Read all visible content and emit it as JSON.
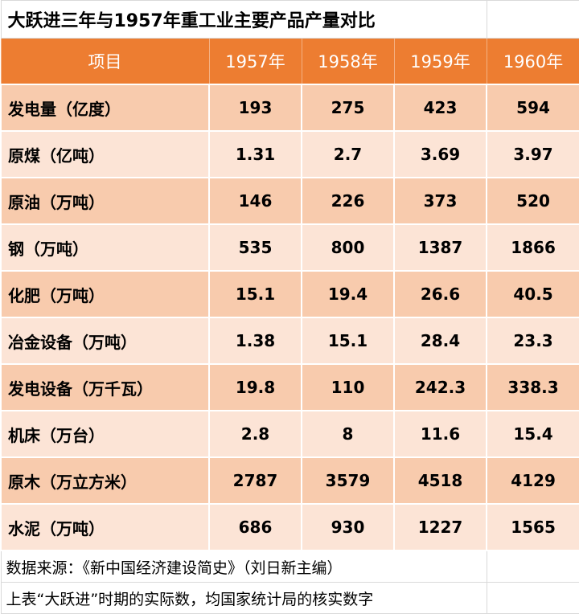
{
  "title": "大跃进三年与1957年重工业主要产品产量对比",
  "headers": [
    "项目",
    "1957年",
    "1958年",
    "1959年",
    "1960年"
  ],
  "rows": [
    [
      "发电量（亿度）",
      "193",
      "275",
      "423",
      "594"
    ],
    [
      "原煤（亿吨）",
      "1.31",
      "2.7",
      "3.69",
      "3.97"
    ],
    [
      "原油（万吨）",
      "146",
      "226",
      "373",
      "520"
    ],
    [
      "钢（万吨）",
      "535",
      "800",
      "1387",
      "1866"
    ],
    [
      "化肥（万吨）",
      "15.1",
      "19.4",
      "26.6",
      "40.5"
    ],
    [
      "冶金设备（万吨）",
      "1.38",
      "15.1",
      "28.4",
      "23.3"
    ],
    [
      "发电设备（万千瓦）",
      "19.8",
      "110",
      "242.3",
      "338.3"
    ],
    [
      "机床（万台）",
      "2.8",
      "8",
      "11.6",
      "15.4"
    ],
    [
      "原木（万立方米）",
      "2787",
      "3579",
      "4518",
      "4129"
    ],
    [
      "水泥（万吨）",
      "686",
      "930",
      "1227",
      "1565"
    ]
  ],
  "notes": {
    "source": "数据来源：《新中国经济建设简史》（刘日新主编）",
    "remark": "上表“大跃进”时期的实际数，均国家统计局的核实数字"
  },
  "colors": {
    "header_bg": "#ed7d31",
    "row_dark": "#f8cbad",
    "row_light": "#fce4d6"
  }
}
